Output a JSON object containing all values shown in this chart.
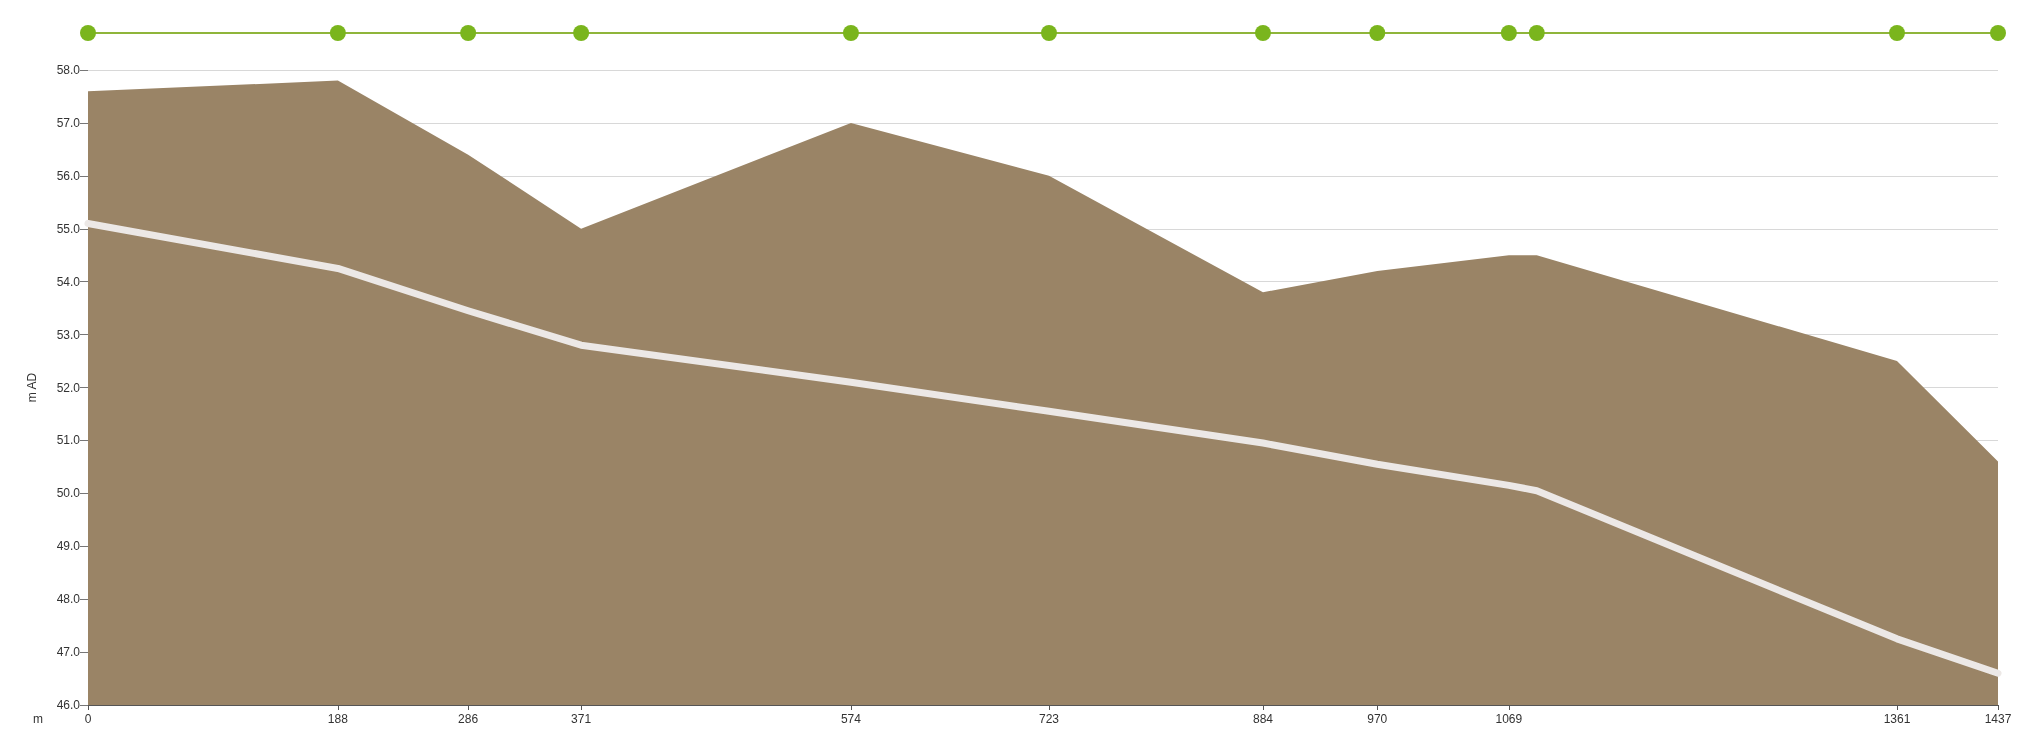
{
  "chart_data": {
    "type": "area",
    "xlabel": "m",
    "ylabel": "m AD",
    "x": [
      0,
      188,
      286,
      371,
      574,
      723,
      884,
      970,
      1069,
      1090,
      1361,
      1437
    ],
    "series": [
      {
        "color": "#9a8466",
        "values": [
          57.6,
          57.8,
          56.4,
          55.0,
          57.0,
          56.0,
          53.8,
          54.2,
          54.5,
          54.5,
          52.5,
          50.6
        ]
      },
      {
        "type": "line",
        "color": "#ece8e6",
        "values": [
          55.1,
          54.25,
          53.45,
          52.8,
          52.1,
          51.55,
          50.95,
          50.55,
          50.15,
          50.05,
          47.25,
          46.6
        ]
      }
    ],
    "xlim": [
      0,
      1437
    ],
    "xticks": [
      0,
      188,
      286,
      371,
      574,
      723,
      884,
      970,
      1069,
      1361,
      1437
    ],
    "ylim": [
      46,
      58
    ],
    "yticks": [
      {
        "value": 46,
        "label": "46.0"
      },
      {
        "value": 47,
        "label": "47.0"
      },
      {
        "value": 48,
        "label": "48.0"
      },
      {
        "value": 49,
        "label": "49.0"
      },
      {
        "value": 50,
        "label": "50.0"
      },
      {
        "value": 51,
        "label": "51.0"
      },
      {
        "value": 52,
        "label": "52.0"
      },
      {
        "value": 53,
        "label": "53.0"
      },
      {
        "value": 54,
        "label": "54.0"
      },
      {
        "value": 55,
        "label": "55.0"
      },
      {
        "value": 56,
        "label": "56.0"
      },
      {
        "value": 57,
        "label": "57.0"
      },
      {
        "value": 58,
        "label": "58.0"
      }
    ],
    "grid": "y",
    "marker": "none",
    "line_style": "solid"
  }
}
